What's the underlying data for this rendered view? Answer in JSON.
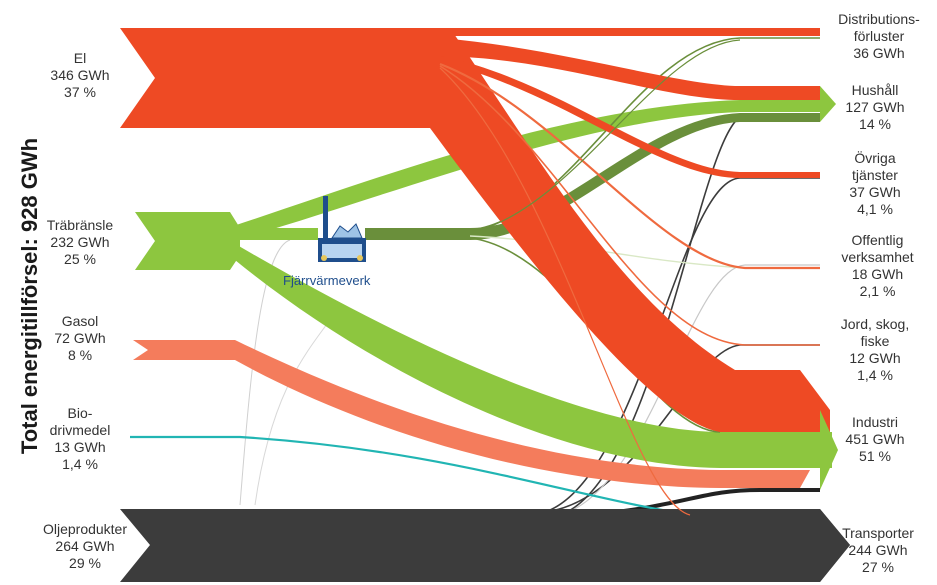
{
  "title": "Total energitillförsel: 928 GWh",
  "plant_label": "Fjärrvärmeverk",
  "colors": {
    "el": "#ee4a24",
    "tra": "#8dc63f",
    "tra_dark": "#6a8f3b",
    "gasol": "#f47c5c",
    "bio": "#21b5b3",
    "olja": "#3c3c3c",
    "thin_el": "#ef6a3f",
    "thin_green": "#8ab64a",
    "thin_gray": "#c8c8c8"
  },
  "sources": [
    {
      "key": "el",
      "name": "El",
      "value": "346 GWh",
      "share": "37 %"
    },
    {
      "key": "tra",
      "name": "Träbränsle",
      "value": "232 GWh",
      "share": "25 %"
    },
    {
      "key": "gasol",
      "name": "Gasol",
      "value": "72 GWh",
      "share": "8 %"
    },
    {
      "key": "bio",
      "name_l1": "Bio-",
      "name_l2": "drivmedel",
      "value": "13 GWh",
      "share": "1,4 %"
    },
    {
      "key": "olja",
      "name": "Oljeprodukter",
      "value": "264 GWh",
      "share": "29 %"
    }
  ],
  "targets": [
    {
      "key": "dist",
      "name_l1": "Distributions-",
      "name_l2": "förluster",
      "value": "36 GWh"
    },
    {
      "key": "hush",
      "name": "Hushåll",
      "value": "127 GWh",
      "share": "14 %"
    },
    {
      "key": "ovr",
      "name_l1": "Övriga",
      "name_l2": "tjänster",
      "value": "37 GWh",
      "share": "4,1 %"
    },
    {
      "key": "off",
      "name_l1": "Offentlig",
      "name_l2": "verksamhet",
      "value": "18 GWh",
      "share": "2,1 %"
    },
    {
      "key": "jord",
      "name_l1": "Jord, skog,",
      "name_l2": "fiske",
      "value": "12 GWh",
      "share": "1,4 %"
    },
    {
      "key": "ind",
      "name": "Industri",
      "value": "451 GWh",
      "share": "51 %"
    },
    {
      "key": "trans",
      "name": "Transporter",
      "value": "244  GWh",
      "share": "27 %"
    }
  ]
}
